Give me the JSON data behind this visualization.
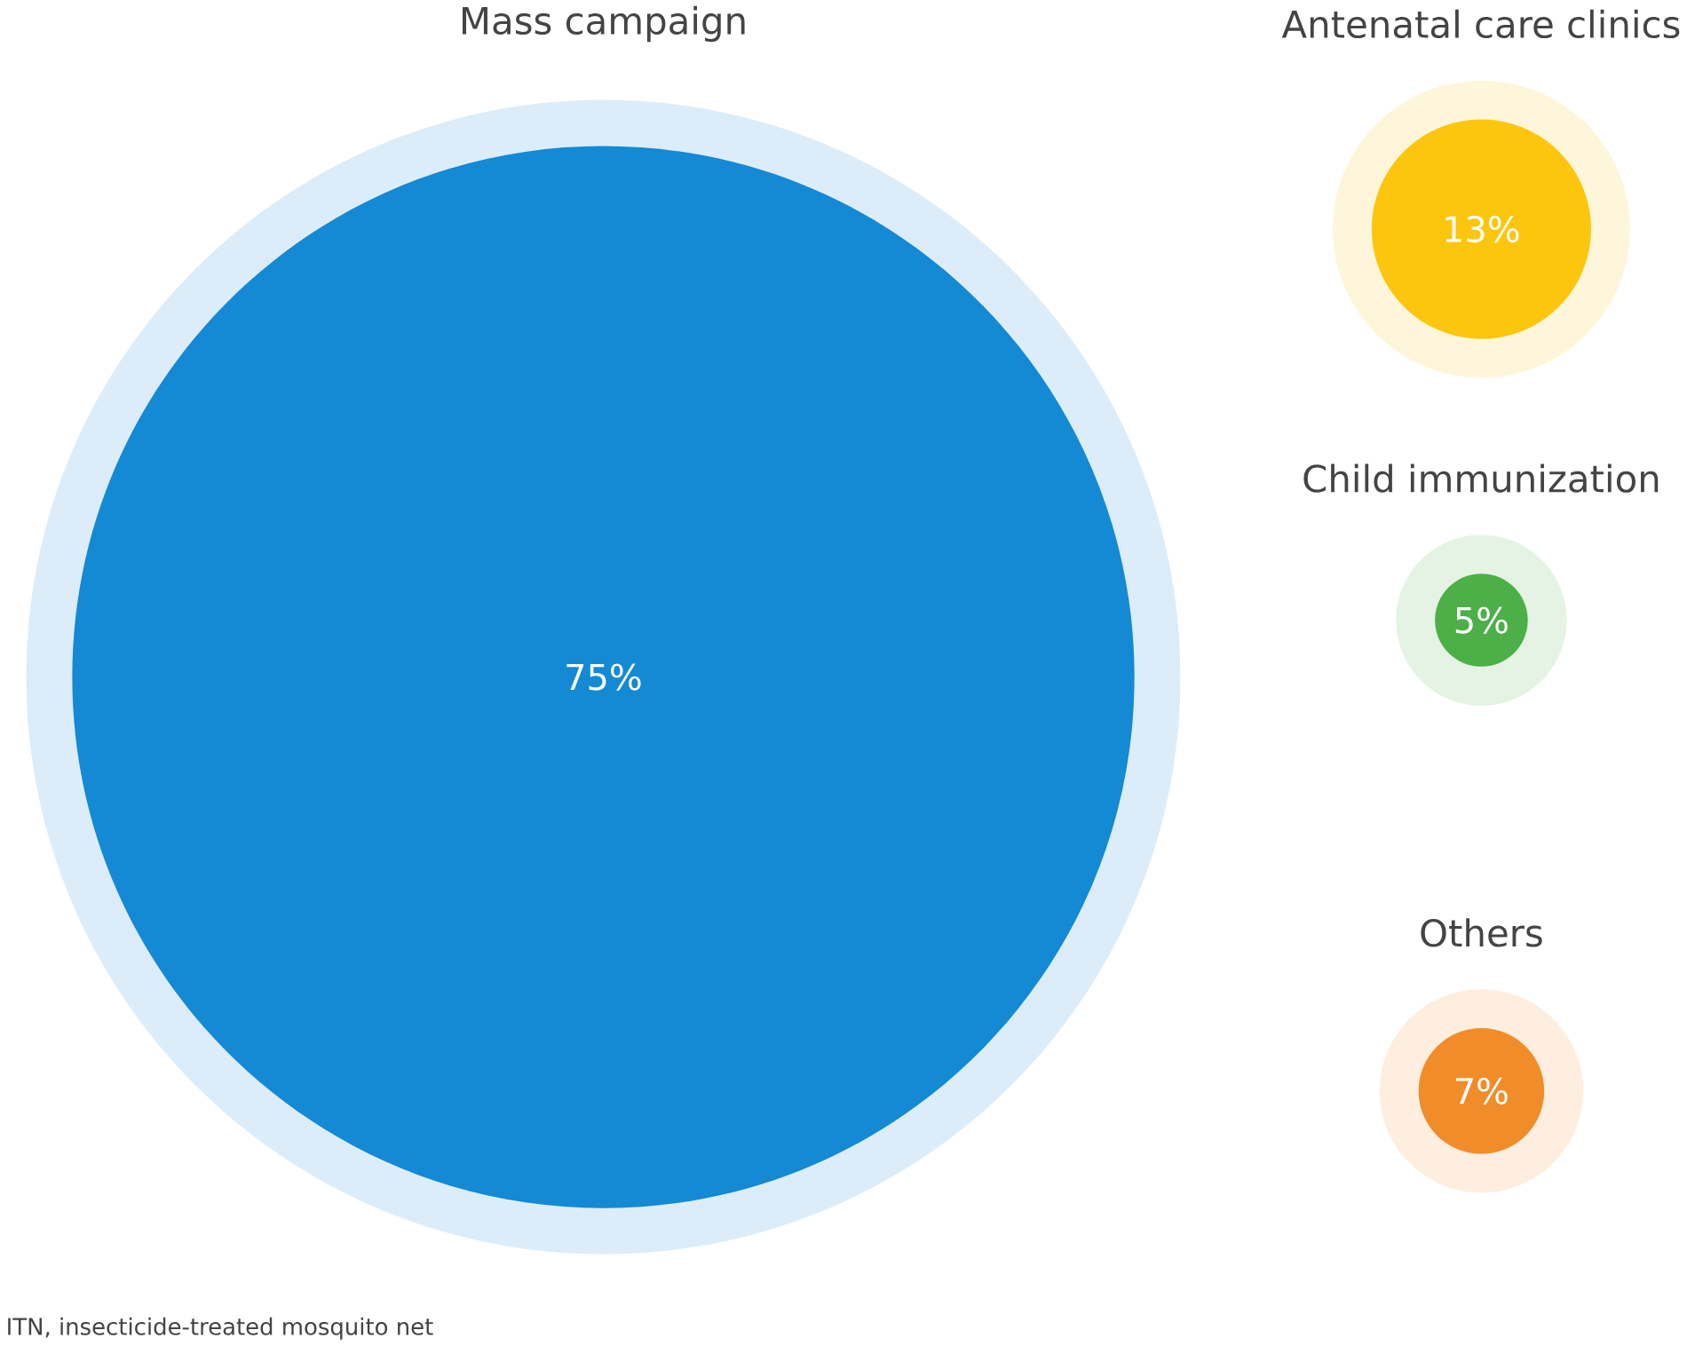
{
  "chart_data": {
    "type": "other",
    "categories": [
      "Mass campaign",
      "Antenatal care clinics",
      "Child immunization",
      "Others"
    ],
    "values": [
      75,
      13,
      5,
      7
    ],
    "value_labels": [
      "75%",
      "13%",
      "5%",
      "7%"
    ],
    "colors": [
      "#1489d4",
      "#fcc60e",
      "#4caf47",
      "#f08c2a"
    ],
    "annotations": [
      "ITN, insecticide-treated mosquito net"
    ]
  }
}
